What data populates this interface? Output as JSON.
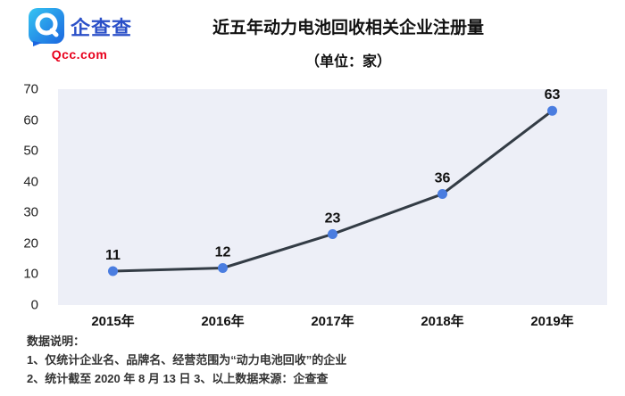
{
  "logo": {
    "name": "企查查",
    "domain": "Qcc.com",
    "brand_blue": "#2b50c8",
    "brand_red": "#e8001c"
  },
  "chart_data": {
    "type": "line",
    "title": "近五年动力电池回收相关企业注册量",
    "subtitle": "（单位：家）",
    "categories": [
      "2015年",
      "2016年",
      "2017年",
      "2018年",
      "2019年"
    ],
    "values": [
      11,
      12,
      23,
      36,
      63
    ],
    "ylim": [
      0,
      70
    ],
    "ytick_step": 10,
    "grid": false,
    "legend": "none",
    "line_color": "#333c45",
    "point_color": "#4a7de0",
    "plot_bg": "#edeff7",
    "label_color": "#111111"
  },
  "notes": {
    "heading": "数据说明：",
    "line1": "1、仅统计企业名、品牌名、经营范围为“动力电池回收”的企业",
    "line2": "2、统计截至 2020 年 8 月 13 日  3、以上数据来源：企查查"
  }
}
